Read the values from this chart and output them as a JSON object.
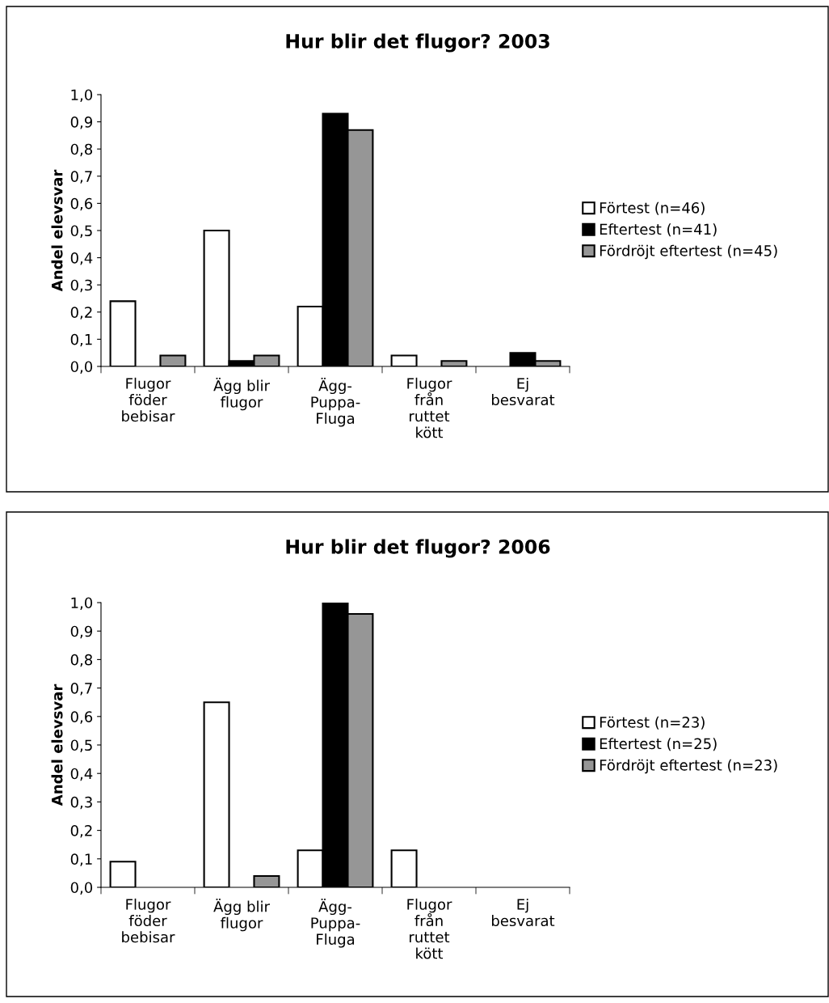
{
  "chart_data": [
    {
      "type": "bar",
      "title": "Hur blir det flugor? 2003",
      "ylabel": "Andel elevsvar",
      "categories": [
        "Flugor\nföder\nbebisar",
        "Ägg blir\nflugor",
        "Ägg-\nPuppa-\nFluga",
        "Flugor\nfrån\nruttet\nkött",
        "Ej\nbesvarat"
      ],
      "series": [
        {
          "name": "Förtest (n=46)",
          "color": "#ffffff",
          "values": [
            0.24,
            0.5,
            0.22,
            0.04,
            null
          ]
        },
        {
          "name": "Eftertest (n=41)",
          "color": "#000000",
          "values": [
            null,
            0.02,
            0.93,
            null,
            0.05
          ]
        },
        {
          "name": "Fördröjt eftertest (n=45)",
          "color": "#969696",
          "values": [
            0.04,
            0.04,
            0.87,
            0.02,
            0.02
          ]
        }
      ],
      "ylim": [
        0,
        1
      ],
      "yticks": [
        {
          "value": 0,
          "label": "0,0"
        },
        {
          "value": 0.1,
          "label": "0,1"
        },
        {
          "value": 0.2,
          "label": "0,2"
        },
        {
          "value": 0.3,
          "label": "0,3"
        },
        {
          "value": 0.4,
          "label": "0,4"
        },
        {
          "value": 0.5,
          "label": "0,5"
        },
        {
          "value": 0.6,
          "label": "0,6"
        },
        {
          "value": 0.7,
          "label": "0,7"
        },
        {
          "value": 0.8,
          "label": "0,8"
        },
        {
          "value": 0.9,
          "label": "0,9"
        },
        {
          "value": 1,
          "label": "1,0"
        }
      ],
      "grid": false,
      "legend": "right"
    },
    {
      "type": "bar",
      "title": "Hur blir det flugor? 2006",
      "ylabel": "Andel elevsvar",
      "categories": [
        "Flugor\nföder\nbebisar",
        "Ägg blir\nflugor",
        "Ägg-\nPuppa-\nFluga",
        "Flugor\nfrån\nruttet\nkött",
        "Ej\nbesvarat"
      ],
      "series": [
        {
          "name": "Förtest (n=23)",
          "color": "#ffffff",
          "values": [
            0.09,
            0.65,
            0.13,
            0.13,
            null
          ]
        },
        {
          "name": "Eftertest (n=25)",
          "color": "#000000",
          "values": [
            null,
            null,
            1.0,
            null,
            null
          ]
        },
        {
          "name": "Fördröjt eftertest (n=23)",
          "color": "#969696",
          "values": [
            null,
            0.04,
            0.96,
            null,
            null
          ]
        }
      ],
      "ylim": [
        0,
        1
      ],
      "yticks": [
        {
          "value": 0,
          "label": "0,0"
        },
        {
          "value": 0.1,
          "label": "0,1"
        },
        {
          "value": 0.2,
          "label": "0,2"
        },
        {
          "value": 0.3,
          "label": "0,3"
        },
        {
          "value": 0.4,
          "label": "0,4"
        },
        {
          "value": 0.5,
          "label": "0,5"
        },
        {
          "value": 0.6,
          "label": "0,6"
        },
        {
          "value": 0.7,
          "label": "0,7"
        },
        {
          "value": 0.8,
          "label": "0,8"
        },
        {
          "value": 0.9,
          "label": "0,9"
        },
        {
          "value": 1,
          "label": "1,0"
        }
      ],
      "grid": false,
      "legend": "right"
    }
  ]
}
